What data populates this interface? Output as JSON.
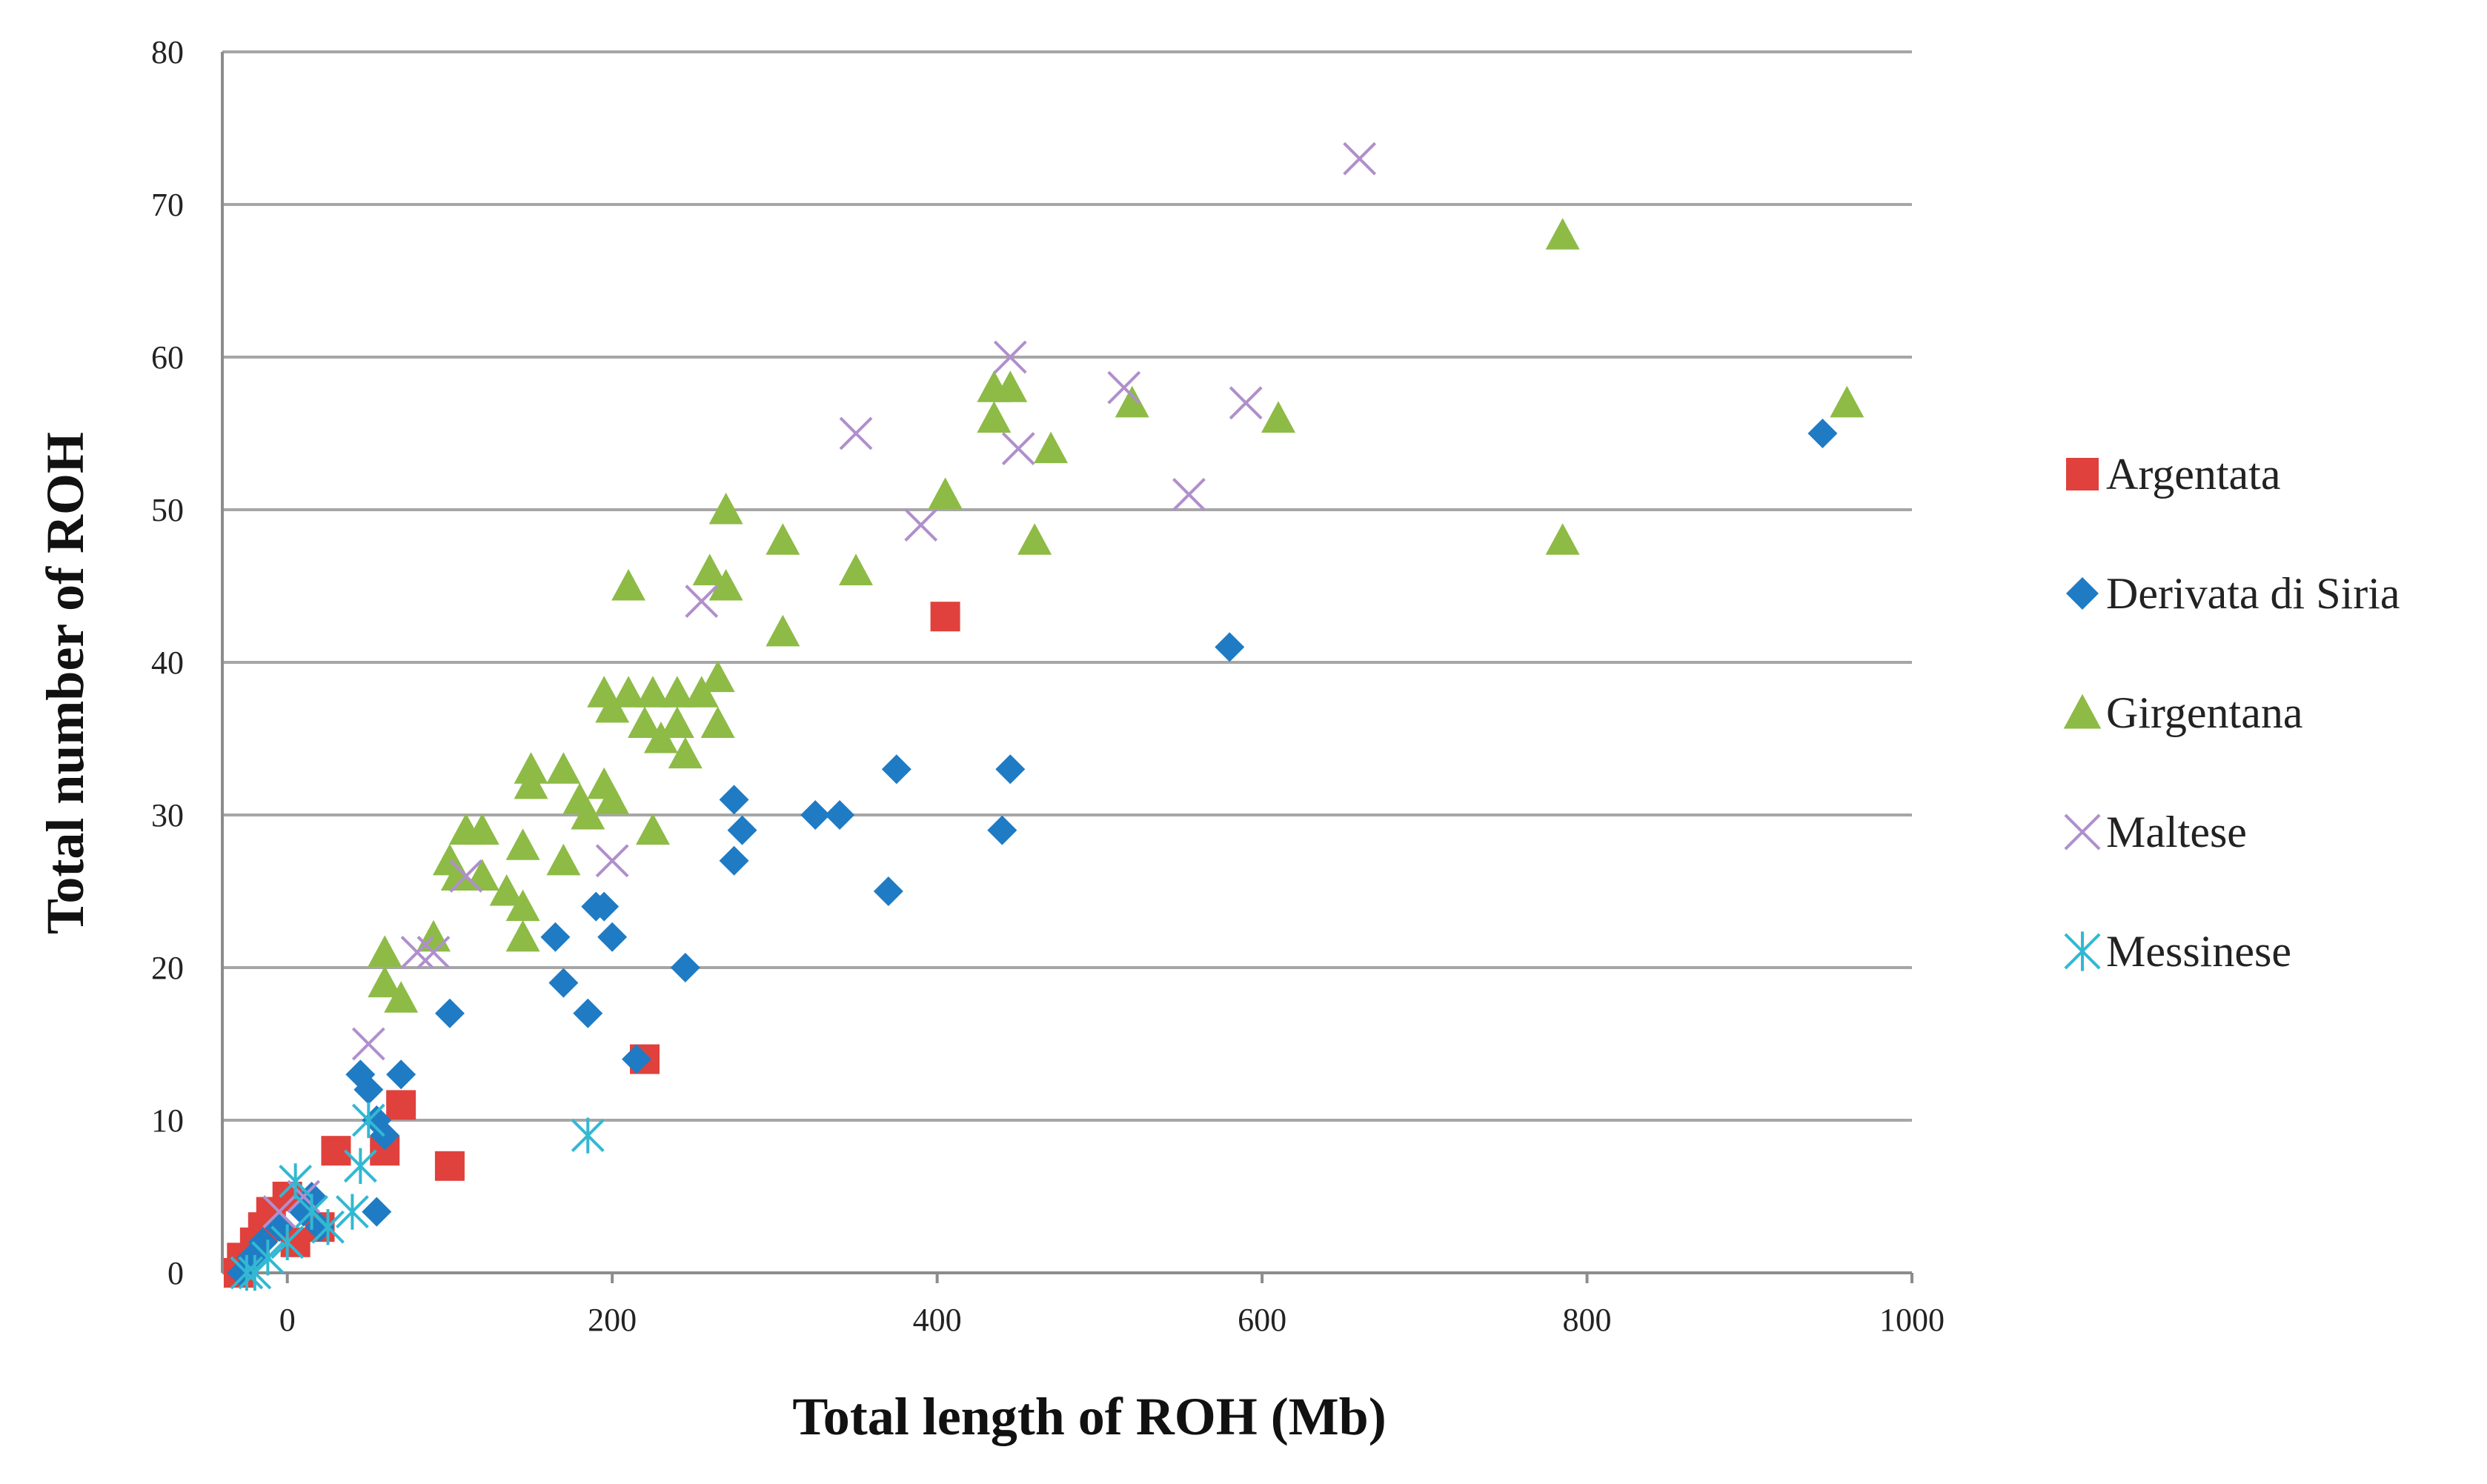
{
  "chart_data": {
    "type": "scatter",
    "title": "",
    "xlabel": "Total length of ROH (Mb)",
    "ylabel": "Total number of ROH",
    "xlim": [
      -40,
      1000
    ],
    "ylim": [
      0,
      80
    ],
    "xticks": [
      0,
      200,
      400,
      600,
      800,
      1000
    ],
    "xtick_labels": [
      "0",
      "200",
      "400",
      "600",
      "800",
      "1000"
    ],
    "yticks": [
      0,
      10,
      20,
      30,
      40,
      50,
      60,
      70,
      80
    ],
    "ytick_labels": [
      "0",
      "10",
      "20",
      "30",
      "40",
      "50",
      "60",
      "70",
      "80"
    ],
    "grid": true,
    "legend_position": "right",
    "series": [
      {
        "name": "Argentata",
        "marker": "square",
        "color": "#e0413c",
        "points": [
          [
            405,
            43
          ],
          [
            220,
            14
          ],
          [
            100,
            7
          ],
          [
            70,
            11
          ],
          [
            30,
            8
          ],
          [
            60,
            8
          ],
          [
            0,
            5
          ],
          [
            -10,
            4
          ],
          [
            20,
            3
          ],
          [
            -20,
            2
          ],
          [
            -28,
            1
          ],
          [
            -30,
            0
          ],
          [
            -15,
            3
          ],
          [
            5,
            2
          ]
        ]
      },
      {
        "name": "Derivata di Siria",
        "marker": "diamond",
        "color": "#1f7bc4",
        "points": [
          [
            945,
            55
          ],
          [
            580,
            41
          ],
          [
            445,
            33
          ],
          [
            440,
            29
          ],
          [
            375,
            33
          ],
          [
            370,
            25
          ],
          [
            340,
            30
          ],
          [
            325,
            30
          ],
          [
            280,
            29
          ],
          [
            275,
            27
          ],
          [
            275,
            31
          ],
          [
            245,
            20
          ],
          [
            215,
            14
          ],
          [
            200,
            22
          ],
          [
            195,
            24
          ],
          [
            190,
            24
          ],
          [
            185,
            17
          ],
          [
            170,
            19
          ],
          [
            165,
            22
          ],
          [
            100,
            17
          ],
          [
            70,
            13
          ],
          [
            45,
            13
          ],
          [
            50,
            12
          ],
          [
            55,
            10
          ],
          [
            60,
            9
          ],
          [
            55,
            4
          ],
          [
            15,
            5
          ],
          [
            10,
            4
          ],
          [
            20,
            3
          ],
          [
            -5,
            3
          ],
          [
            -15,
            2
          ],
          [
            -22,
            1
          ],
          [
            -28,
            0
          ]
        ]
      },
      {
        "name": "Girgentana",
        "marker": "triangle",
        "color": "#8dbb46",
        "points": [
          [
            960,
            57
          ],
          [
            785,
            68
          ],
          [
            785,
            48
          ],
          [
            610,
            56
          ],
          [
            520,
            57
          ],
          [
            470,
            54
          ],
          [
            460,
            48
          ],
          [
            445,
            58
          ],
          [
            435,
            58
          ],
          [
            435,
            56
          ],
          [
            405,
            51
          ],
          [
            350,
            46
          ],
          [
            305,
            48
          ],
          [
            305,
            42
          ],
          [
            270,
            50
          ],
          [
            270,
            45
          ],
          [
            260,
            46
          ],
          [
            265,
            39
          ],
          [
            265,
            36
          ],
          [
            255,
            38
          ],
          [
            245,
            34
          ],
          [
            240,
            36
          ],
          [
            240,
            38
          ],
          [
            230,
            35
          ],
          [
            225,
            38
          ],
          [
            225,
            29
          ],
          [
            220,
            36
          ],
          [
            210,
            38
          ],
          [
            210,
            45
          ],
          [
            200,
            37
          ],
          [
            195,
            32
          ],
          [
            195,
            38
          ],
          [
            200,
            31
          ],
          [
            185,
            30
          ],
          [
            180,
            31
          ],
          [
            170,
            33
          ],
          [
            170,
            27
          ],
          [
            150,
            32
          ],
          [
            150,
            33
          ],
          [
            145,
            28
          ],
          [
            145,
            24
          ],
          [
            145,
            22
          ],
          [
            135,
            25
          ],
          [
            120,
            26
          ],
          [
            120,
            29
          ],
          [
            110,
            29
          ],
          [
            105,
            26
          ],
          [
            100,
            27
          ],
          [
            90,
            22
          ],
          [
            70,
            18
          ],
          [
            60,
            21
          ],
          [
            60,
            19
          ]
        ]
      },
      {
        "name": "Maltese",
        "marker": "x",
        "color": "#b08fcc",
        "points": [
          [
            660,
            73
          ],
          [
            590,
            57
          ],
          [
            555,
            51
          ],
          [
            515,
            58
          ],
          [
            450,
            54
          ],
          [
            445,
            60
          ],
          [
            390,
            49
          ],
          [
            350,
            55
          ],
          [
            255,
            44
          ],
          [
            200,
            27
          ],
          [
            110,
            26
          ],
          [
            90,
            21
          ],
          [
            80,
            21
          ],
          [
            50,
            15
          ],
          [
            10,
            5
          ],
          [
            -5,
            4
          ]
        ]
      },
      {
        "name": "Messinese",
        "marker": "asterisk",
        "color": "#33b8d2",
        "points": [
          [
            185,
            9
          ],
          [
            50,
            10
          ],
          [
            45,
            7
          ],
          [
            40,
            4
          ],
          [
            5,
            6
          ],
          [
            15,
            4
          ],
          [
            25,
            3
          ],
          [
            0,
            2
          ],
          [
            -12,
            1
          ],
          [
            -20,
            0
          ],
          [
            -25,
            0
          ]
        ]
      }
    ]
  }
}
